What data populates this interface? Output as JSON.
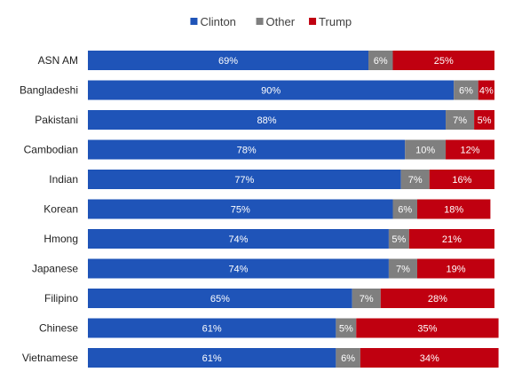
{
  "chart_data": {
    "type": "bar",
    "orientation": "horizontal",
    "stacked": true,
    "categories": [
      "ASN AM",
      "Bangladeshi",
      "Pakistani",
      "Cambodian",
      "Indian",
      "Korean",
      "Hmong",
      "Japanese",
      "Filipino",
      "Chinese",
      "Vietnamese"
    ],
    "series": [
      {
        "name": "Clinton",
        "color": "#1f54b8",
        "values": [
          69,
          90,
          88,
          78,
          77,
          75,
          74,
          74,
          65,
          61,
          61
        ],
        "labels": [
          "69%",
          "90%",
          "88%",
          "78%",
          "77%",
          "75%",
          "74%",
          "74%",
          "65%",
          "61%",
          "61%"
        ]
      },
      {
        "name": "Other",
        "color": "#7f7f7f",
        "values": [
          6,
          6,
          7,
          10,
          7,
          6,
          5,
          7,
          7,
          5,
          6
        ],
        "labels": [
          "6%",
          "6%",
          "7%",
          "10%",
          "7%",
          "6%",
          "5%",
          "7%",
          "7%",
          "5%",
          "6%"
        ]
      },
      {
        "name": "Trump",
        "color": "#c00010",
        "values": [
          25,
          4,
          5,
          12,
          16,
          18,
          21,
          19,
          28,
          35,
          34
        ],
        "labels": [
          "25%",
          "4%",
          "5%",
          "12%",
          "16%",
          "18%",
          "21%",
          "19%",
          "28%",
          "35%",
          "34%"
        ]
      }
    ],
    "xlim": [
      0,
      100
    ],
    "legend_position": "top-center",
    "grid": false
  }
}
